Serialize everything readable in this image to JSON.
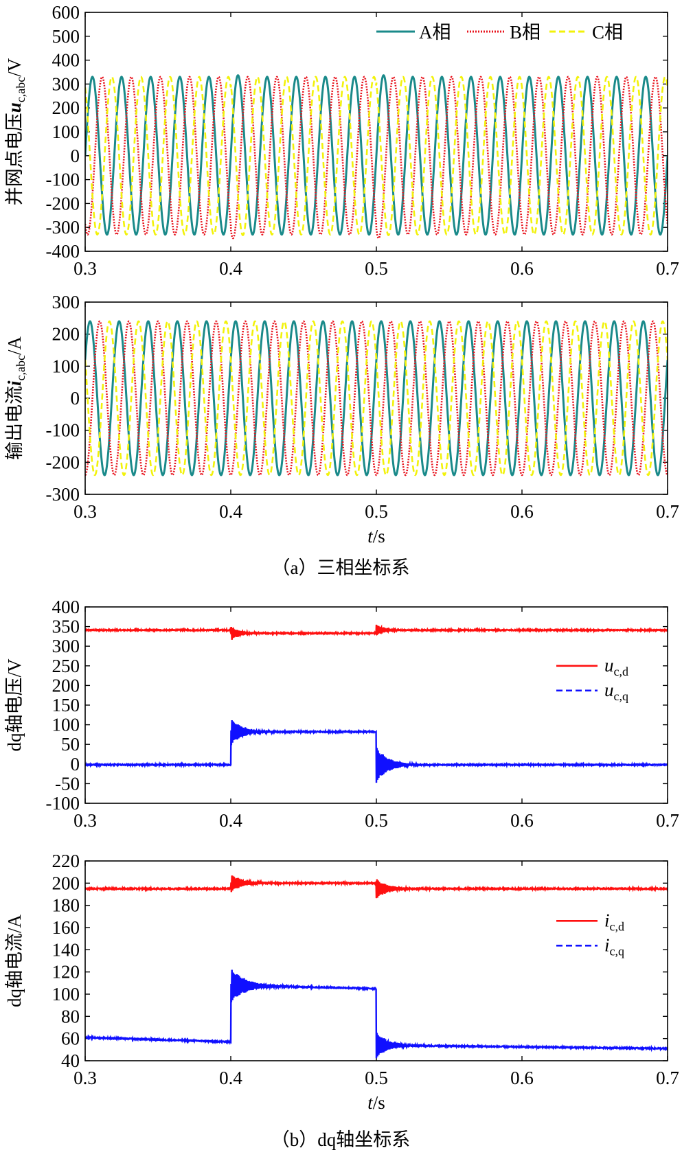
{
  "captions": {
    "a": "（a）三相坐标系",
    "b": "（b）dq轴坐标系"
  },
  "chart_data": [
    {
      "type": "line",
      "id": "uabc",
      "ylabel_parts": [
        "并网点电压",
        "u",
        "c,abc",
        "/V"
      ],
      "xlabel": "",
      "xlim": [
        0.3,
        0.7
      ],
      "ylim": [
        -400,
        600
      ],
      "xticks": [
        "0.3",
        "0.4",
        "0.5",
        "0.6",
        "0.7"
      ],
      "yticks": [
        "-400",
        "-300",
        "-200",
        "-100",
        "0",
        "100",
        "200",
        "300",
        "400",
        "500",
        "600"
      ],
      "legend_position": "top-right",
      "legend_layout": "horizontal",
      "freq_hz": 50,
      "amplitude_before": 330,
      "amplitude_after": 330,
      "series": [
        {
          "name": "A相",
          "color": "#1a8a8a",
          "dash": "solid",
          "phase_deg": 0
        },
        {
          "name": "B相",
          "color": "#e8141e",
          "dash": "dotted",
          "phase_deg": -120
        },
        {
          "name": "C相",
          "color": "#f2f20a",
          "dash": "dashed",
          "phase_deg": 120
        }
      ],
      "events": [
        0.4,
        0.5
      ]
    },
    {
      "type": "line",
      "id": "iabc",
      "ylabel_parts": [
        "输出电流",
        "i",
        "c,abc",
        "/A"
      ],
      "xlabel_parts": [
        "t",
        "/s"
      ],
      "xlim": [
        0.3,
        0.7
      ],
      "ylim": [
        -300,
        300
      ],
      "xticks": [
        "0.3",
        "0.4",
        "0.5",
        "0.6",
        "0.7"
      ],
      "yticks": [
        "-300",
        "-200",
        "-100",
        "0",
        "100",
        "200",
        "300"
      ],
      "freq_hz": 50,
      "amplitude_before": 240,
      "amplitude_after": 240,
      "series": [
        {
          "name": "A相",
          "color": "#1a8a8a",
          "dash": "solid",
          "phase_deg": 30
        },
        {
          "name": "B相",
          "color": "#e8141e",
          "dash": "dotted",
          "phase_deg": -90
        },
        {
          "name": "C相",
          "color": "#f2f20a",
          "dash": "dashed",
          "phase_deg": 150
        }
      ]
    },
    {
      "type": "line",
      "id": "udq",
      "ylabel_parts": [
        "dq轴电压/V"
      ],
      "xlabel": "",
      "xlim": [
        0.3,
        0.7
      ],
      "ylim": [
        -100,
        400
      ],
      "xticks": [
        "0.3",
        "0.4",
        "0.5",
        "0.6",
        "0.7"
      ],
      "yticks": [
        "-100",
        "-50",
        "0",
        "50",
        "100",
        "150",
        "200",
        "250",
        "300",
        "350",
        "400"
      ],
      "legend_position": "right",
      "series": [
        {
          "name_parts": [
            "u",
            "c,d"
          ],
          "color": "#ff1010",
          "dash": "solid",
          "segments": [
            [
              0.3,
              0.4,
              341,
              341
            ],
            [
              0.4,
              0.5,
              333,
              333
            ],
            [
              0.5,
              0.7,
              341,
              341
            ]
          ],
          "transients": [
            [
              0.4,
              -18,
              0.006
            ],
            [
              0.5,
              14,
              0.006
            ]
          ]
        },
        {
          "name_parts": [
            "u",
            "c,q"
          ],
          "color": "#1010ff",
          "dash": "dashed",
          "segments": [
            [
              0.3,
              0.4,
              -2,
              -2
            ],
            [
              0.4,
              0.5,
              82,
              82
            ],
            [
              0.5,
              0.7,
              -2,
              -2
            ]
          ],
          "transients": [
            [
              0.4,
              35,
              0.008
            ],
            [
              0.5,
              -45,
              0.008
            ]
          ]
        }
      ]
    },
    {
      "type": "line",
      "id": "idq",
      "ylabel_parts": [
        "dq轴电流/A"
      ],
      "xlabel_parts": [
        "t",
        "/s"
      ],
      "xlim": [
        0.3,
        0.7
      ],
      "ylim": [
        40,
        220
      ],
      "xticks": [
        "0.3",
        "0.4",
        "0.5",
        "0.6",
        "0.7"
      ],
      "yticks": [
        "40",
        "60",
        "80",
        "100",
        "120",
        "140",
        "160",
        "180",
        "200",
        "220"
      ],
      "legend_position": "right",
      "series": [
        {
          "name_parts": [
            "i",
            "c,d"
          ],
          "color": "#ff1010",
          "dash": "solid",
          "segments": [
            [
              0.3,
              0.4,
              195,
              195
            ],
            [
              0.4,
              0.5,
              200,
              200
            ],
            [
              0.5,
              0.7,
              195,
              195
            ]
          ],
          "transients": [
            [
              0.4,
              8,
              0.008
            ],
            [
              0.5,
              -9,
              0.008
            ]
          ]
        },
        {
          "name_parts": [
            "i",
            "c,q"
          ],
          "color": "#1010ff",
          "dash": "dashed",
          "segments": [
            [
              0.3,
              0.4,
              61,
              57
            ],
            [
              0.4,
              0.5,
              108,
              105
            ],
            [
              0.5,
              0.7,
              54,
              51
            ]
          ],
          "transients": [
            [
              0.4,
              16,
              0.01
            ],
            [
              0.5,
              -12,
              0.008
            ]
          ]
        }
      ]
    }
  ]
}
